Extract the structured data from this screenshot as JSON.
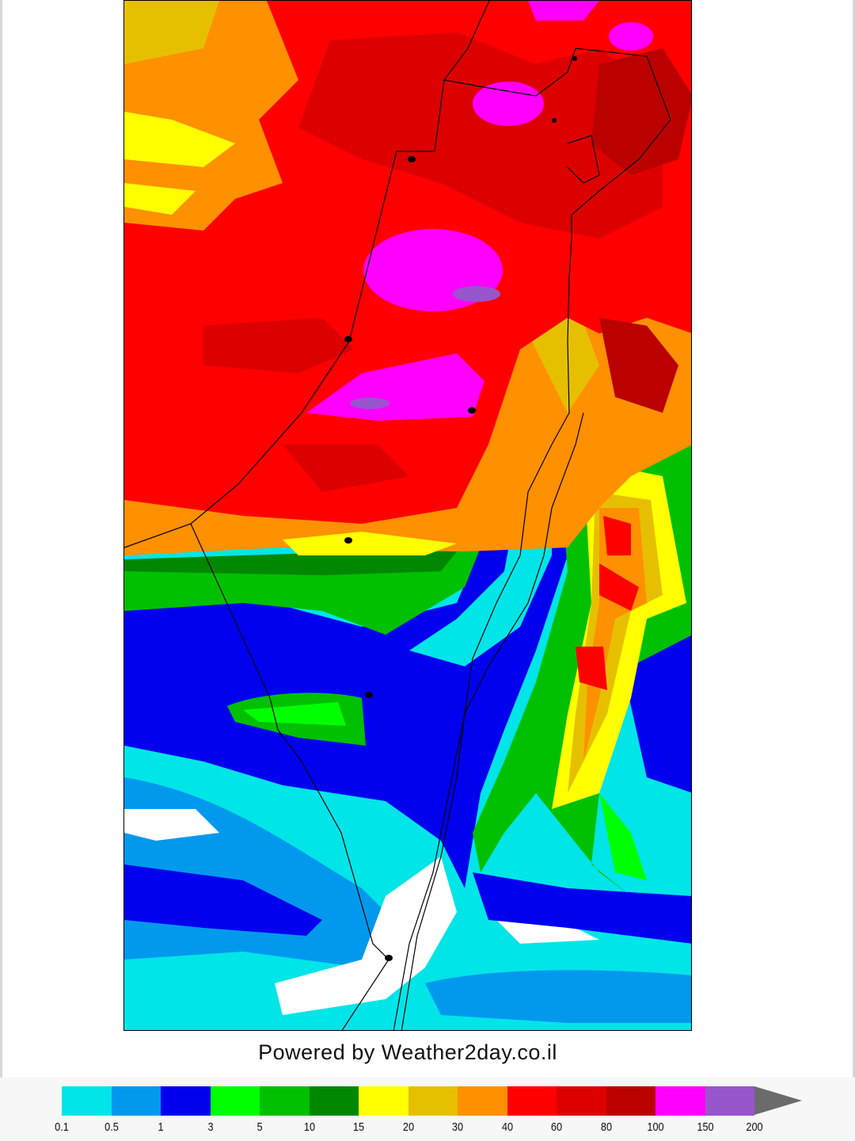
{
  "credit": "Powered by Weather2day.co.il",
  "legend": {
    "labels": [
      "0.1",
      "0.5",
      "1",
      "3",
      "5",
      "10",
      "15",
      "20",
      "30",
      "40",
      "60",
      "80",
      "100",
      "150",
      "200"
    ],
    "colors": [
      "#00e5e8",
      "#0099ee",
      "#0000ee",
      "#00ff00",
      "#00c000",
      "#008800",
      "#ffff00",
      "#e6c000",
      "#ff9000",
      "#ff0000",
      "#dd0000",
      "#bb0000",
      "#ff00ff",
      "#9955cc"
    ],
    "overflow_color": "#6b6b6b"
  },
  "map": {
    "type": "precipitation accumulation contour map",
    "border_color": "#000000",
    "city_marker_color": "#000000"
  }
}
